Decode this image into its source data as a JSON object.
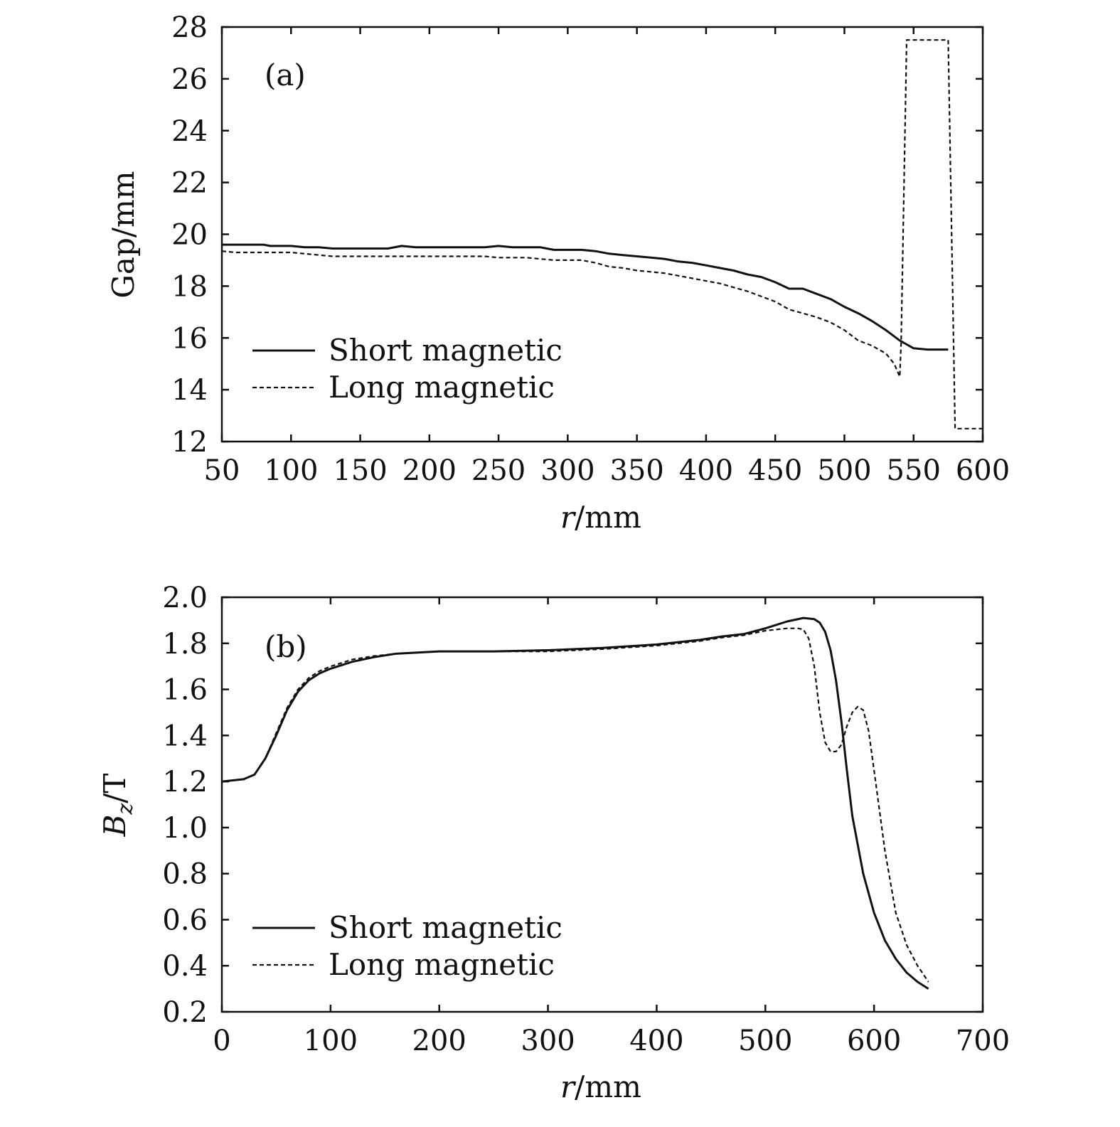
{
  "chart_data": [
    {
      "type": "line",
      "panel_label": "(a)",
      "xlabel_italic": "r",
      "xlabel_rest": "/mm",
      "ylabel": "Gap/mm",
      "xlim": [
        50,
        600
      ],
      "ylim": [
        12,
        28
      ],
      "xticks": [
        50,
        100,
        150,
        200,
        250,
        300,
        350,
        400,
        450,
        500,
        550,
        600
      ],
      "yticks": [
        12,
        14,
        16,
        18,
        20,
        22,
        24,
        26,
        28
      ],
      "grid": false,
      "legend_position": "bottom-left",
      "series": [
        {
          "name": "Short magnetic",
          "style": "solid",
          "x": [
            50,
            80,
            85,
            100,
            110,
            120,
            130,
            170,
            180,
            190,
            240,
            250,
            260,
            280,
            290,
            310,
            320,
            330,
            340,
            350,
            360,
            370,
            380,
            390,
            400,
            410,
            420,
            430,
            440,
            450,
            460,
            470,
            480,
            490,
            500,
            510,
            520,
            530,
            540,
            550,
            560,
            575
          ],
          "y": [
            19.6,
            19.6,
            19.55,
            19.55,
            19.5,
            19.5,
            19.45,
            19.45,
            19.55,
            19.5,
            19.5,
            19.55,
            19.5,
            19.5,
            19.4,
            19.4,
            19.35,
            19.25,
            19.2,
            19.15,
            19.1,
            19.05,
            18.95,
            18.9,
            18.8,
            18.7,
            18.6,
            18.45,
            18.35,
            18.15,
            17.9,
            17.9,
            17.7,
            17.5,
            17.2,
            16.95,
            16.65,
            16.3,
            15.9,
            15.6,
            15.55,
            15.55
          ]
        },
        {
          "name": "Long magnetic",
          "style": "dashed",
          "x": [
            50,
            60,
            100,
            110,
            120,
            130,
            170,
            240,
            250,
            270,
            280,
            290,
            310,
            320,
            330,
            340,
            350,
            360,
            370,
            380,
            390,
            400,
            410,
            420,
            430,
            440,
            450,
            460,
            470,
            480,
            490,
            500,
            510,
            520,
            530,
            536,
            540,
            541,
            545,
            575,
            580,
            600
          ],
          "y": [
            19.35,
            19.3,
            19.3,
            19.25,
            19.2,
            19.15,
            19.15,
            19.15,
            19.1,
            19.1,
            19.05,
            19.0,
            19.0,
            18.9,
            18.75,
            18.7,
            18.6,
            18.55,
            18.5,
            18.4,
            18.3,
            18.2,
            18.1,
            17.95,
            17.8,
            17.6,
            17.4,
            17.1,
            16.95,
            16.8,
            16.6,
            16.3,
            15.9,
            15.7,
            15.4,
            15.0,
            14.5,
            15.8,
            27.5,
            27.5,
            12.5,
            12.5
          ]
        }
      ]
    },
    {
      "type": "line",
      "panel_label": "(b)",
      "xlabel_italic": "r",
      "xlabel_rest": "/mm",
      "ylabel_italic": "B",
      "ylabel_sub": "z",
      "ylabel_rest": "/T",
      "xlim": [
        0,
        700
      ],
      "ylim": [
        0.2,
        2.0
      ],
      "xticks": [
        0,
        100,
        200,
        300,
        400,
        500,
        600,
        700
      ],
      "yticks": [
        0.2,
        0.4,
        0.6,
        0.8,
        1.0,
        1.2,
        1.4,
        1.6,
        1.8,
        2.0
      ],
      "ytick_labels": [
        "0.2",
        "0.4",
        "0.6",
        "0.8",
        "1.0",
        "1.2",
        "1.4",
        "1.6",
        "1.8",
        "2.0"
      ],
      "grid": false,
      "legend_position": "bottom-left",
      "series": [
        {
          "name": "Short magnetic",
          "style": "solid",
          "x": [
            0,
            20,
            30,
            40,
            50,
            60,
            70,
            80,
            90,
            100,
            120,
            140,
            160,
            200,
            250,
            300,
            350,
            400,
            440,
            460,
            480,
            500,
            520,
            535,
            545,
            550,
            555,
            560,
            565,
            570,
            575,
            580,
            590,
            600,
            610,
            620,
            630,
            640,
            650
          ],
          "y": [
            1.2,
            1.21,
            1.23,
            1.3,
            1.4,
            1.51,
            1.59,
            1.64,
            1.67,
            1.69,
            1.72,
            1.74,
            1.755,
            1.765,
            1.765,
            1.77,
            1.78,
            1.795,
            1.815,
            1.83,
            1.84,
            1.865,
            1.895,
            1.91,
            1.905,
            1.89,
            1.85,
            1.77,
            1.64,
            1.46,
            1.25,
            1.05,
            0.8,
            0.63,
            0.51,
            0.43,
            0.37,
            0.33,
            0.3
          ]
        },
        {
          "name": "Long magnetic",
          "style": "dashed",
          "x": [
            0,
            20,
            30,
            40,
            50,
            60,
            70,
            80,
            90,
            100,
            120,
            140,
            160,
            200,
            250,
            300,
            350,
            400,
            440,
            460,
            480,
            500,
            520,
            530,
            535,
            540,
            545,
            550,
            555,
            560,
            565,
            570,
            575,
            580,
            585,
            590,
            595,
            600,
            610,
            620,
            630,
            640,
            650
          ],
          "y": [
            1.2,
            1.21,
            1.23,
            1.3,
            1.41,
            1.52,
            1.6,
            1.65,
            1.68,
            1.7,
            1.73,
            1.745,
            1.755,
            1.765,
            1.765,
            1.765,
            1.775,
            1.79,
            1.81,
            1.825,
            1.835,
            1.855,
            1.865,
            1.865,
            1.86,
            1.82,
            1.7,
            1.5,
            1.37,
            1.33,
            1.33,
            1.36,
            1.44,
            1.5,
            1.525,
            1.51,
            1.42,
            1.25,
            0.9,
            0.63,
            0.49,
            0.4,
            0.33
          ]
        }
      ]
    }
  ]
}
